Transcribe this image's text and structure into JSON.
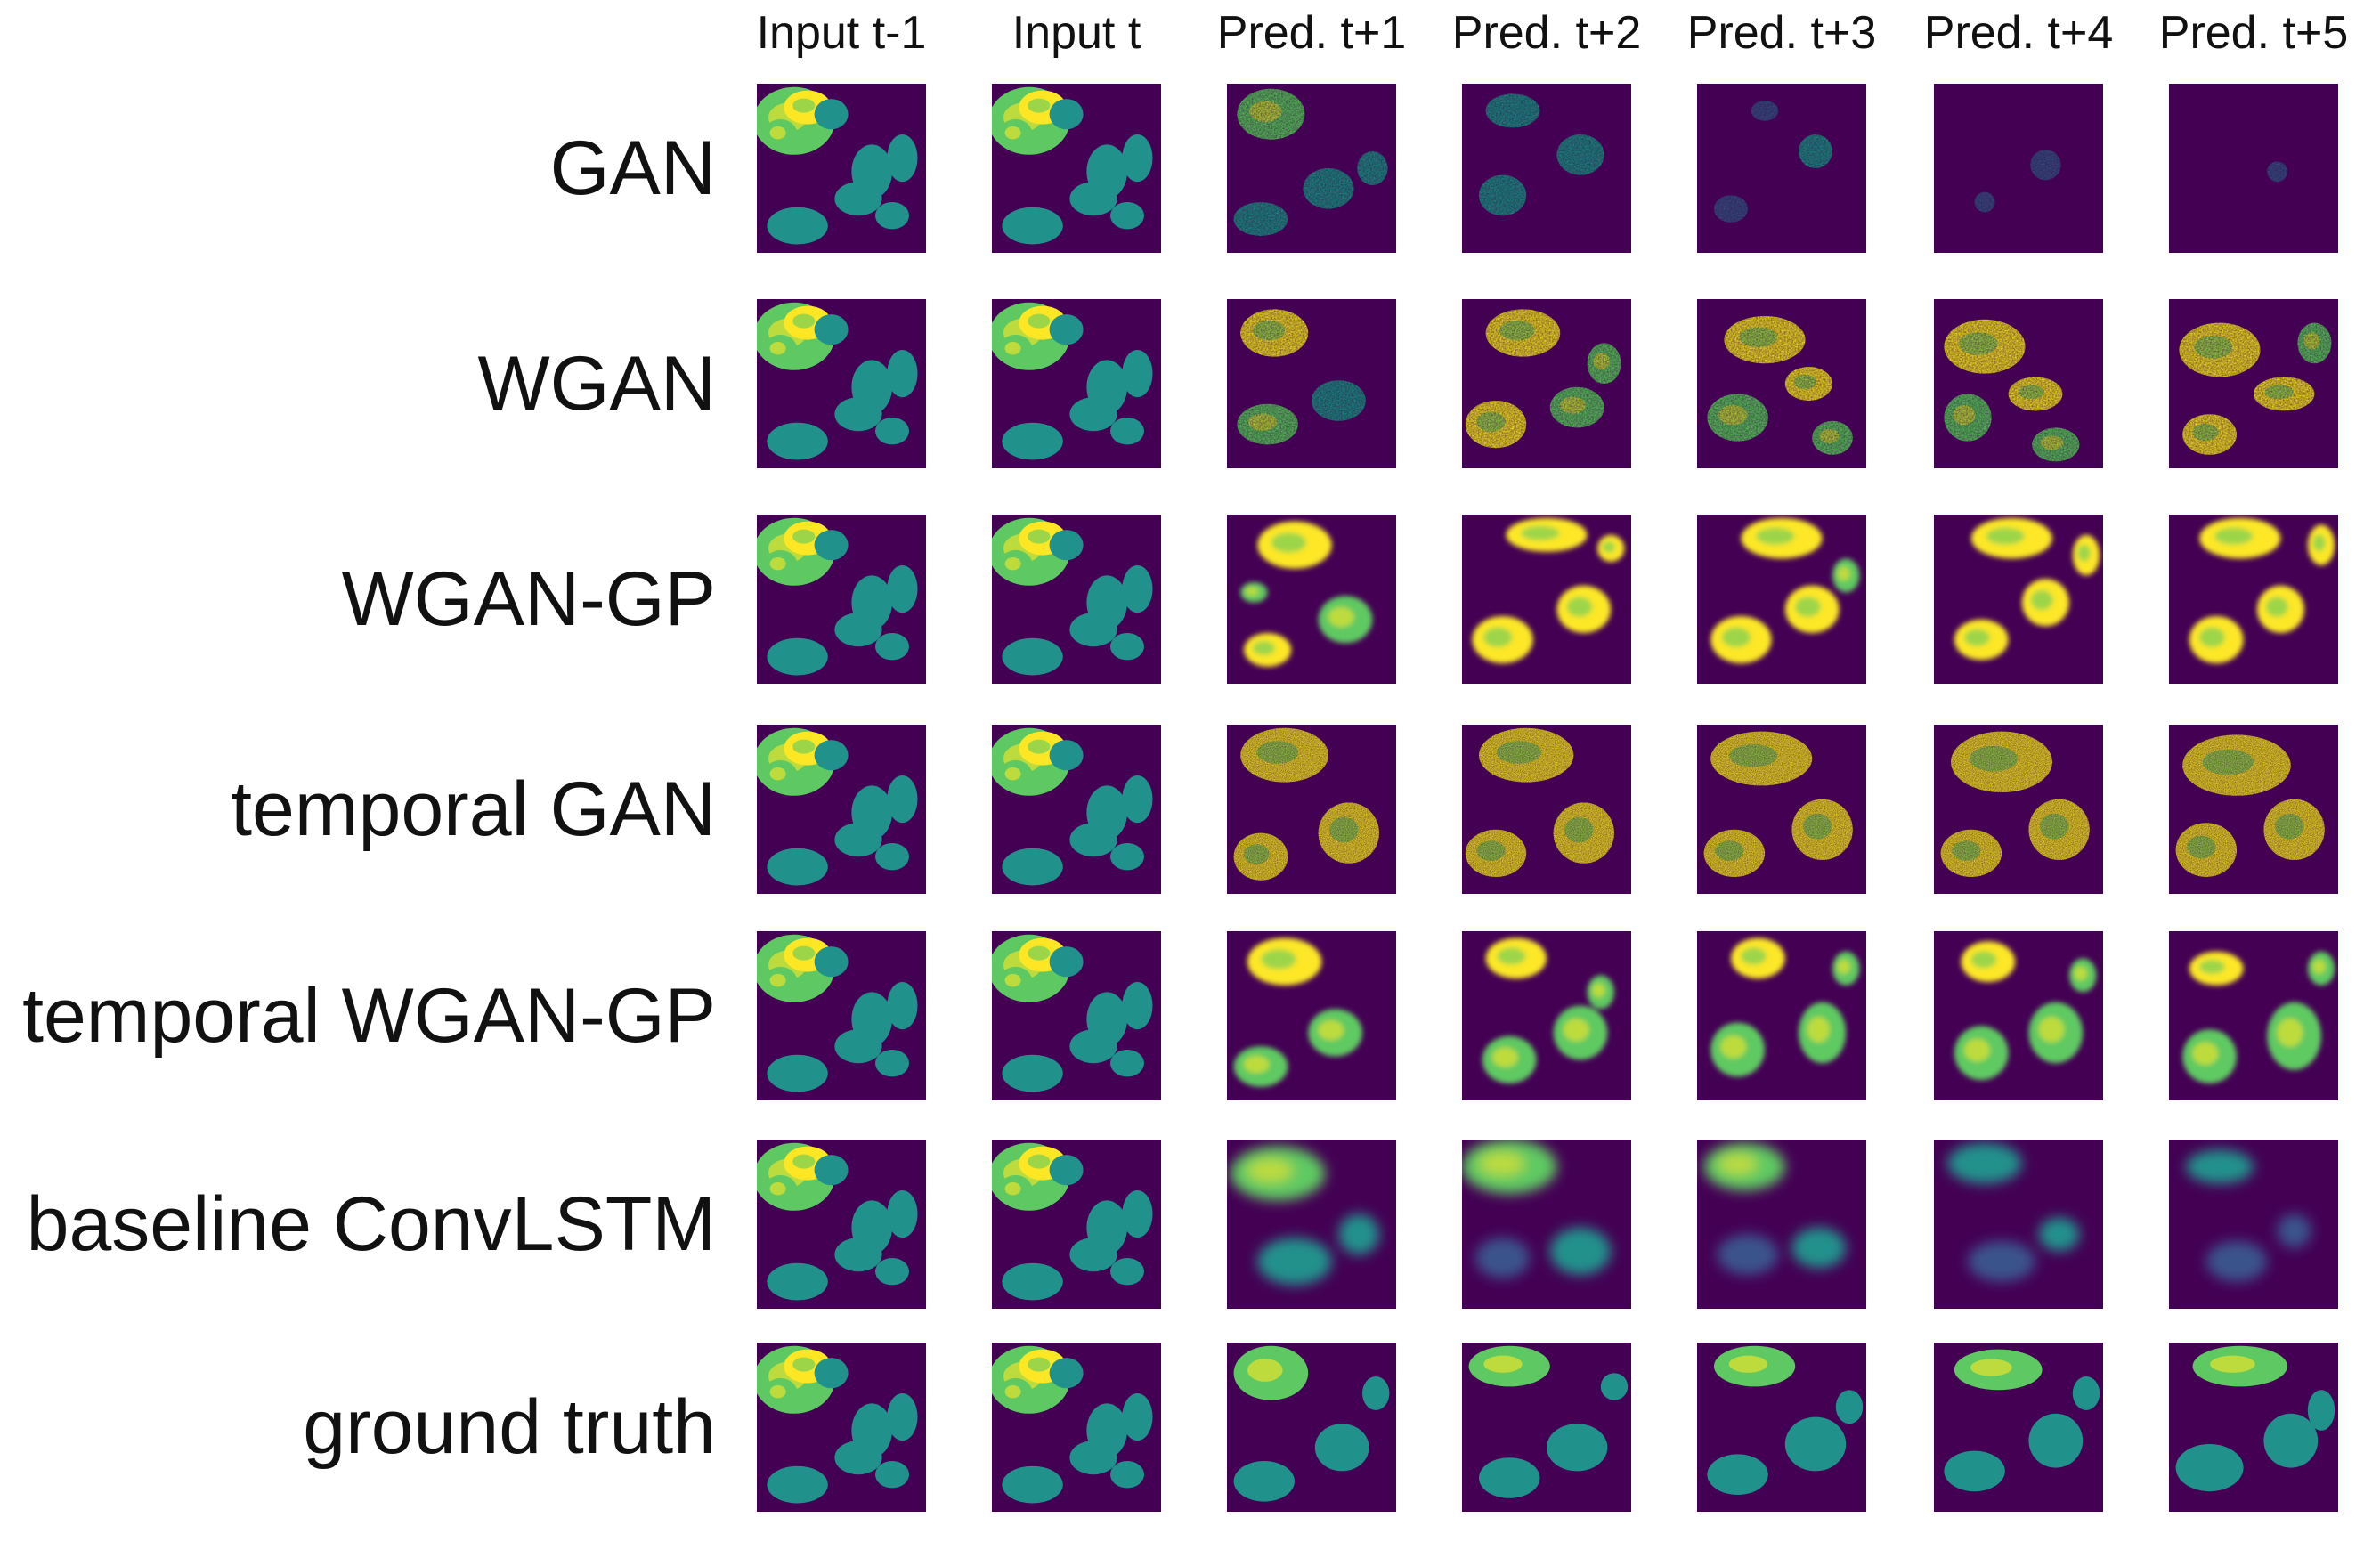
{
  "figure": {
    "columns": [
      "Input t-1",
      "Input t",
      "Pred. t+1",
      "Pred. t+2",
      "Pred. t+3",
      "Pred. t+4",
      "Pred. t+5"
    ],
    "rows": [
      {
        "label": "GAN",
        "style": "gan"
      },
      {
        "label": "WGAN",
        "style": "wgan"
      },
      {
        "label": "WGAN-GP",
        "style": "wgangp"
      },
      {
        "label": "temporal GAN",
        "style": "tgan"
      },
      {
        "label": "temporal WGAN-GP",
        "style": "twgangp"
      },
      {
        "label": "baseline ConvLSTM",
        "style": "convlstm"
      },
      {
        "label": "ground truth",
        "style": "truth"
      }
    ],
    "colormap": [
      "#440154",
      "#3b528b",
      "#21918c",
      "#5ec962",
      "#fde725"
    ]
  }
}
